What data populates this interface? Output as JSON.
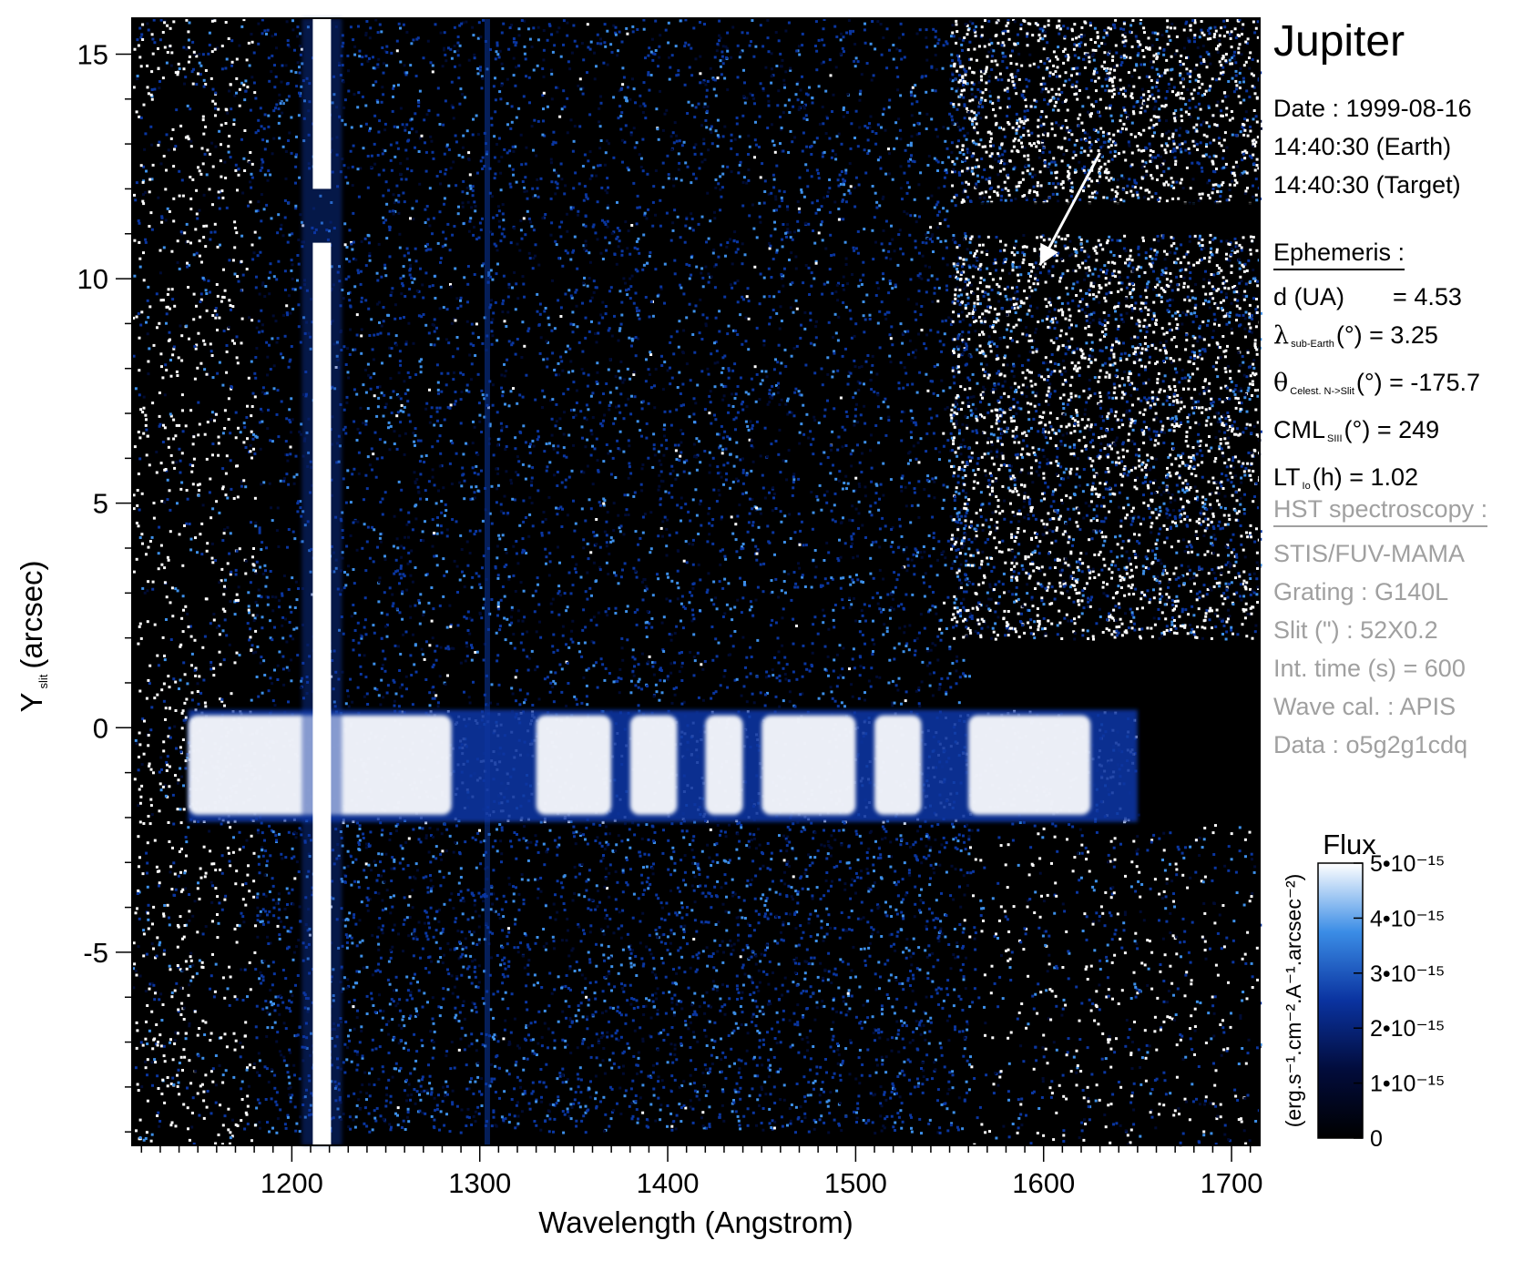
{
  "title": "Jupiter",
  "observation": {
    "date": "Date : 1999-08-16",
    "time_earth": "14:40:30 (Earth)",
    "time_target": "14:40:30 (Target)"
  },
  "ephemeris": {
    "heading": "Ephemeris :",
    "d_label": "d (UA)",
    "d_value": "= 4.53",
    "lambda_symbol": "λ",
    "lambda_sub": "sub-Earth",
    "lambda_rest": "(°)  = 3.25",
    "theta_symbol": "θ",
    "theta_sub": "Celest. N->Slit",
    "theta_rest": "(°) = -175.7",
    "cml_label": "CML",
    "cml_sub": "SIII",
    "cml_rest": "(°) = 249",
    "lt_label": "LT",
    "lt_sub": "Io",
    "lt_rest": "(h) = 1.02"
  },
  "instrument": {
    "heading": "HST spectroscopy :",
    "detector": "STIS/FUV-MAMA",
    "grating": "Grating : G140L",
    "slit": "Slit (\") : 52X0.2",
    "int_time": "Int. time (s) = 600",
    "wave_cal": "Wave cal. : APIS",
    "data": "Data : o5g2g1cdq"
  },
  "colors": {
    "background": "#000000",
    "emission": "#ffffff",
    "low": "#000b33",
    "mid": "#0a36a0",
    "high": "#3d8fe8",
    "peak": "#ffffff"
  },
  "chart_data": {
    "type": "heatmap",
    "xlabel": "Wavelength (Angstrom)",
    "ylabel_main": "Y",
    "ylabel_sub": "slit",
    "ylabel_unit": "(arcsec)",
    "xlim": [
      1115,
      1715
    ],
    "ylim": [
      -9.3,
      15.8
    ],
    "xticks": [
      1200,
      1300,
      1400,
      1500,
      1600,
      1700
    ],
    "xtick_labels": [
      "1200",
      "1300",
      "1400",
      "1500",
      "1600",
      "1700"
    ],
    "yticks": [
      -5,
      0,
      5,
      10,
      15
    ],
    "ytick_labels": [
      "-5",
      "0",
      "5",
      "10",
      "15"
    ],
    "features": {
      "lyman_alpha_wavelength": 1216,
      "oi_line_wavelength": 1304,
      "disk_band_y": [
        -2.1,
        0.4
      ],
      "disk_band_x": [
        1140,
        1650
      ],
      "aurora_region_x": [
        1550,
        1715
      ],
      "aurora_region_y": [
        2.0,
        15.8
      ],
      "dark_gap_y": [
        11.0,
        11.7
      ],
      "arrow_from": [
        1630,
        12.8
      ],
      "arrow_to": [
        1598,
        10.3
      ]
    },
    "colorbar": {
      "title": "Flux",
      "label": "(erg.s⁻¹.cm⁻².A⁻¹.arcsec⁻²)",
      "range": [
        0,
        5e-15
      ],
      "tick_labels": [
        "0",
        "1•10⁻¹⁵",
        "2•10⁻¹⁵",
        "3•10⁻¹⁵",
        "4•10⁻¹⁵",
        "5•10⁻¹⁵"
      ]
    }
  }
}
